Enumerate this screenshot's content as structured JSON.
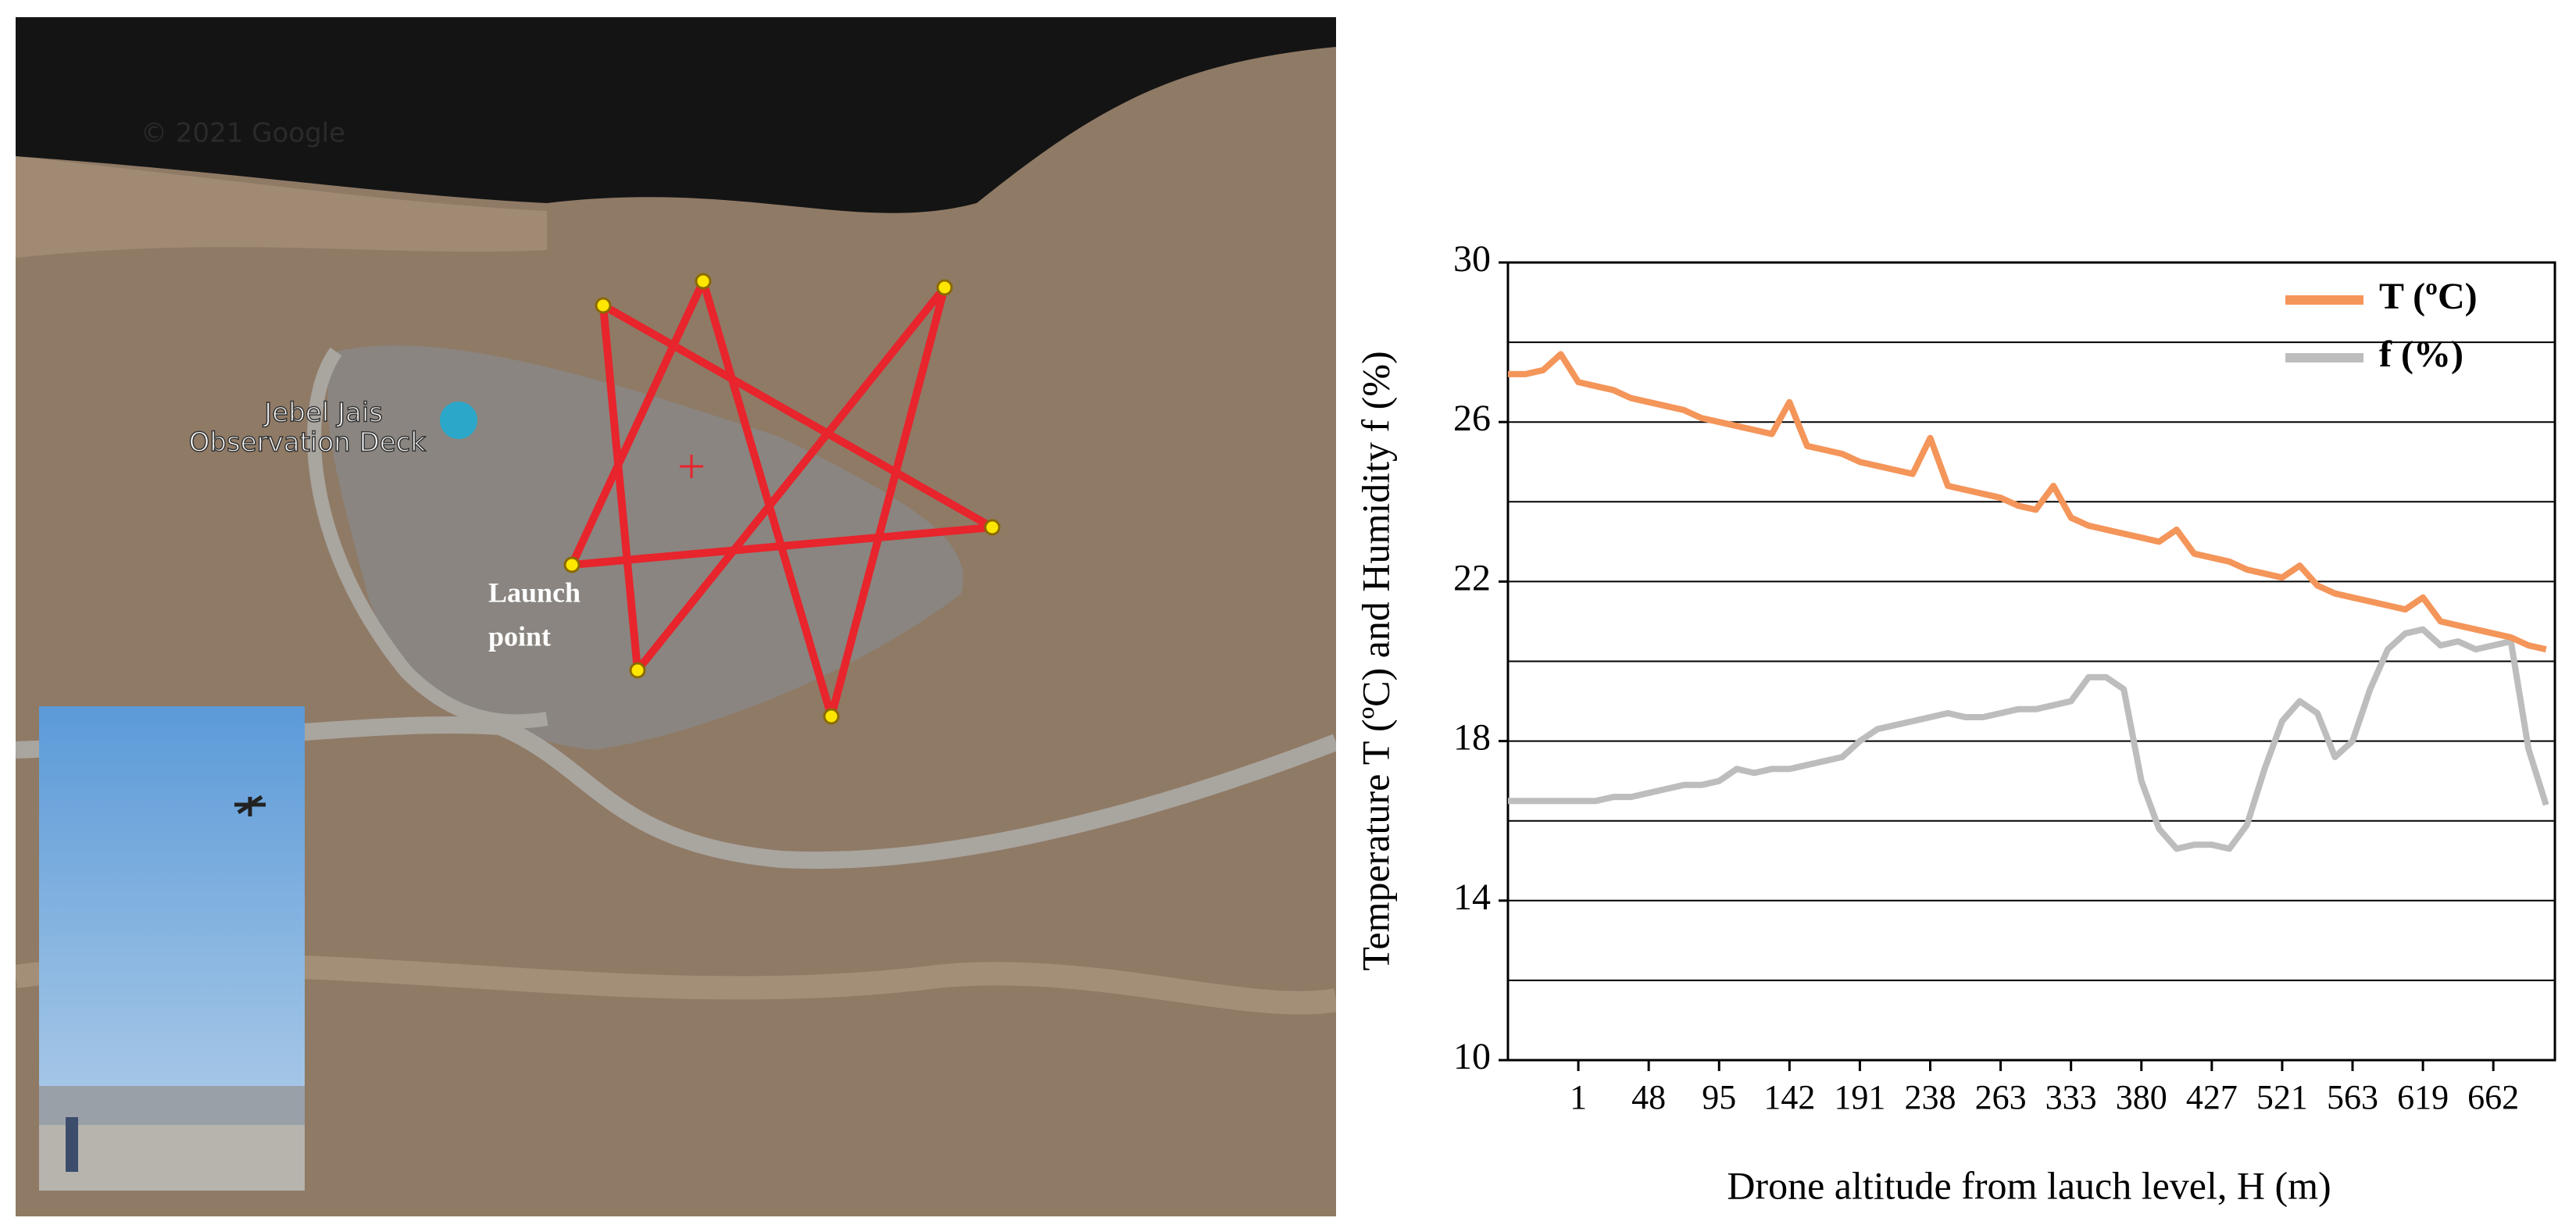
{
  "map": {
    "copyright": "© 2021 Google",
    "poi_label": [
      "Jebel Jais",
      "Observation Deck"
    ],
    "launch_label": [
      "Launch",
      "point"
    ]
  },
  "chart_data": {
    "type": "line",
    "x_label": "Drone altitude from lauch level, H (m)",
    "y_label": "Temperature T (ºC) and Humidity f (%)",
    "categories": [
      null,
      null,
      null,
      null,
      "1",
      null,
      null,
      null,
      "48",
      null,
      null,
      null,
      "95",
      null,
      null,
      null,
      "142",
      null,
      null,
      null,
      "191",
      null,
      null,
      null,
      "238",
      null,
      null,
      null,
      "263",
      null,
      null,
      null,
      "333",
      null,
      null,
      null,
      "380",
      null,
      null,
      null,
      "427",
      null,
      null,
      null,
      "521",
      null,
      null,
      null,
      "563",
      null,
      null,
      null,
      "619",
      null,
      null,
      null,
      "662",
      null,
      null,
      null
    ],
    "ylim": [
      10,
      30
    ],
    "yticks": [
      10,
      14,
      18,
      22,
      26,
      30
    ],
    "grid_lines": [
      12,
      14,
      16,
      18,
      20,
      22,
      24,
      26,
      28
    ],
    "legend": "upper right",
    "series": [
      {
        "name": "T (ºC)",
        "color": "#f4955a",
        "values": [
          27.2,
          27.2,
          27.3,
          27.7,
          27.0,
          26.9,
          26.8,
          26.6,
          26.5,
          26.4,
          26.3,
          26.1,
          26.0,
          25.9,
          25.8,
          25.7,
          26.5,
          25.4,
          25.3,
          25.2,
          25.0,
          24.9,
          24.8,
          24.7,
          25.6,
          24.4,
          24.3,
          24.2,
          24.1,
          23.9,
          23.8,
          24.4,
          23.6,
          23.4,
          23.3,
          23.2,
          23.1,
          23.0,
          23.3,
          22.7,
          22.6,
          22.5,
          22.3,
          22.2,
          22.1,
          22.4,
          21.9,
          21.7,
          21.6,
          21.5,
          21.4,
          21.3,
          21.6,
          21.0,
          20.9,
          20.8,
          20.7,
          20.6,
          20.4,
          20.3
        ]
      },
      {
        "name": "f (%)",
        "color": "#bdbdbd",
        "values": [
          16.5,
          16.5,
          16.5,
          16.5,
          16.5,
          16.5,
          16.6,
          16.6,
          16.7,
          16.8,
          16.9,
          16.9,
          17.0,
          17.3,
          17.2,
          17.3,
          17.3,
          17.4,
          17.5,
          17.6,
          18.0,
          18.3,
          18.4,
          18.5,
          18.6,
          18.7,
          18.6,
          18.6,
          18.7,
          18.8,
          18.8,
          18.9,
          19.0,
          19.6,
          19.6,
          19.3,
          17.0,
          15.8,
          15.3,
          15.4,
          15.4,
          15.3,
          15.9,
          17.3,
          18.5,
          19.0,
          18.7,
          17.6,
          18.0,
          19.3,
          20.3,
          20.7,
          20.8,
          20.4,
          20.5,
          20.3,
          20.4,
          20.5,
          17.8,
          16.4
        ]
      }
    ]
  }
}
